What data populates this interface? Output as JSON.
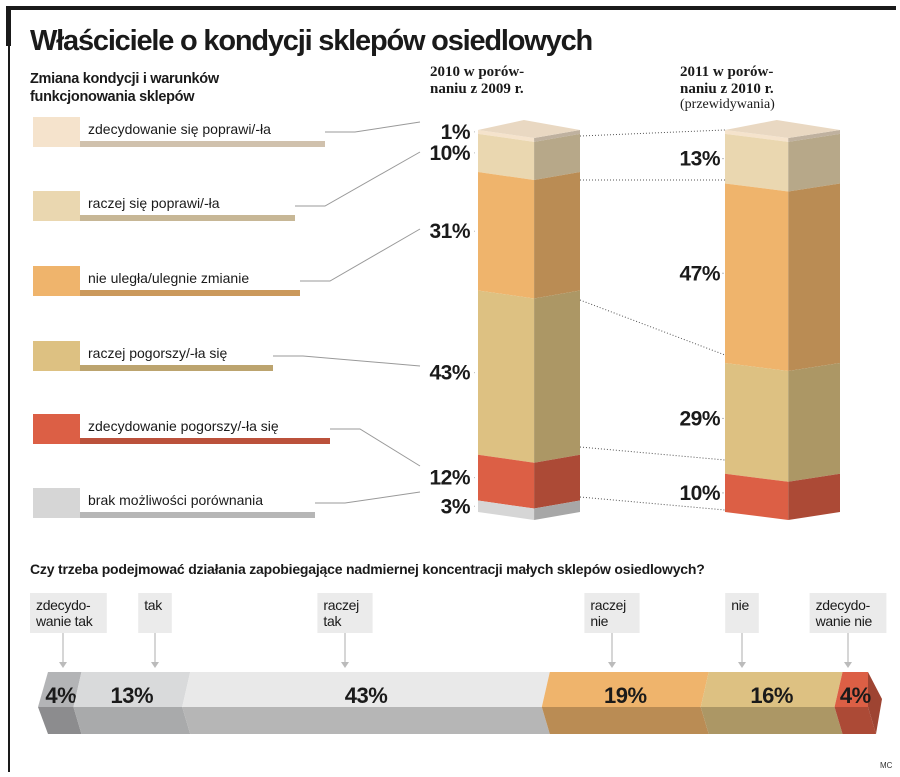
{
  "chart_data": [
    {
      "type": "bar",
      "subtype": "stacked-3d-column",
      "title": "Właściciele o kondycji sklepów osiedlowych",
      "subtitle": "Zmiana kondycji i warunków funkcjonowania sklepów",
      "categories": [
        "2010 w porównaniu z 2009 r.",
        "2011 w porównaniu z 2010 r."
      ],
      "category_lines": [
        [
          "2010 w porów-",
          "naniu z 2009 r."
        ],
        [
          "2011 w porów-",
          "naniu z 2010 r."
        ]
      ],
      "category_notes": [
        "",
        "(przewidywania)"
      ],
      "series": [
        {
          "name": "zdecydowanie się poprawi/-ła",
          "color": "#f5e3cc",
          "values": [
            1,
            1
          ],
          "labels": [
            "1%",
            ""
          ]
        },
        {
          "name": "raczej się poprawi/-ła",
          "color": "#ead7b0",
          "values": [
            10,
            13
          ],
          "labels": [
            "10%",
            "13%"
          ]
        },
        {
          "name": "nie uległa/ulegnie zmianie",
          "color": "#efb46c",
          "values": [
            31,
            47
          ],
          "labels": [
            "31%",
            "47%"
          ]
        },
        {
          "name": "raczej pogorszy/-ła się",
          "color": "#ddc182",
          "values": [
            43,
            29
          ],
          "labels": [
            "43%",
            "29%"
          ]
        },
        {
          "name": "zdecydowanie pogorszy/-ła się",
          "color": "#dc5f45",
          "values": [
            12,
            10
          ],
          "labels": [
            "12%",
            "10%"
          ]
        },
        {
          "name": "brak możliwości porównania",
          "color": "#d6d6d6",
          "values": [
            3,
            0
          ],
          "labels": [
            "3%",
            ""
          ]
        }
      ],
      "legend": "left"
    },
    {
      "type": "bar",
      "subtype": "stacked-horizontal-100",
      "title": "Czy trzeba podejmować działania zapobiegające nadmiernej koncentracji małych sklepów osiedlowych?",
      "categories": [
        "zdecydowanie tak",
        "tak",
        "raczej tak",
        "raczej nie",
        "nie",
        "zdecydowanie nie"
      ],
      "category_lines": [
        [
          "zdecydo-",
          "wanie tak"
        ],
        [
          "tak"
        ],
        [
          "raczej",
          "tak"
        ],
        [
          "raczej",
          "nie"
        ],
        [
          "nie"
        ],
        [
          "zdecydo-",
          "wanie nie"
        ]
      ],
      "values": [
        4,
        13,
        43,
        19,
        16,
        4
      ],
      "labels": [
        "4%",
        "13%",
        "43%",
        "19%",
        "16%",
        "4%"
      ],
      "colors": [
        "#b3b4b6",
        "#d9dadb",
        "#e9e9e9",
        "#efb46c",
        "#ddc182",
        "#dc5f45"
      ]
    }
  ],
  "credit": "MC"
}
